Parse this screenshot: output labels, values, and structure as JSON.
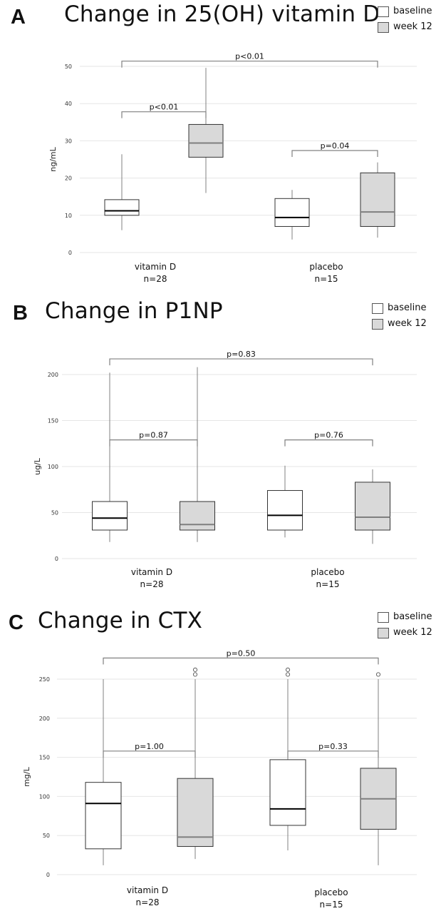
{
  "legend": {
    "baseline": "baseline",
    "week12": "week 12"
  },
  "colors": {
    "baseline_fill": "#ffffff",
    "week12_fill": "#d9d9d9",
    "box_stroke": "#333333",
    "whisker": "#808080",
    "grid": "#e6e6e6",
    "week12_median": "#7f7f7f"
  },
  "chart_data": [
    {
      "type": "box",
      "panel_label": "A",
      "title": "Change in 25(OH) vitamin D",
      "ylabel": "ng/mL",
      "ylim": [
        0,
        50
      ],
      "yticks": [
        0,
        10,
        20,
        30,
        40,
        50
      ],
      "groups": [
        {
          "label": "vitamin D",
          "n": "n=28"
        },
        {
          "label": "placebo",
          "n": "n=15"
        }
      ],
      "boxes": [
        {
          "group": "vitamin D",
          "series": "baseline",
          "min": 6,
          "q1": 10,
          "median": 11.2,
          "q3": 14.2,
          "max": 26.4,
          "outliers": []
        },
        {
          "group": "vitamin D",
          "series": "week 12",
          "min": 16,
          "q1": 25.6,
          "median": 29.4,
          "q3": 34.4,
          "max": 49.6,
          "outliers": []
        },
        {
          "group": "placebo",
          "series": "baseline",
          "min": 3.5,
          "q1": 7,
          "median": 9.4,
          "q3": 14.5,
          "max": 16.8,
          "outliers": []
        },
        {
          "group": "placebo",
          "series": "week 12",
          "min": 4,
          "q1": 7,
          "median": 10.9,
          "q3": 21.4,
          "max": 24.2,
          "outliers": []
        }
      ],
      "brackets": [
        {
          "from": 0,
          "to": 3,
          "label": "p<0.01",
          "y": 51.4
        },
        {
          "from": 0,
          "to": 1,
          "label": "p<0.01",
          "y": 37.8
        },
        {
          "from": 2,
          "to": 3,
          "label": "p=0.04",
          "y": 27.4
        }
      ]
    },
    {
      "type": "box",
      "panel_label": "B",
      "title": "Change in P1NP",
      "ylabel": "ug/L",
      "ylim": [
        0,
        200
      ],
      "yticks": [
        0,
        50,
        100,
        150,
        200
      ],
      "groups": [
        {
          "label": "vitamin D",
          "n": "n=28"
        },
        {
          "label": "placebo",
          "n": "n=15"
        }
      ],
      "boxes": [
        {
          "group": "vitamin D",
          "series": "baseline",
          "min": 18,
          "q1": 31,
          "median": 44,
          "q3": 62,
          "max": 202,
          "outliers": []
        },
        {
          "group": "vitamin D",
          "series": "week 12",
          "min": 18,
          "q1": 31,
          "median": 37,
          "q3": 62,
          "max": 208,
          "outliers": []
        },
        {
          "group": "placebo",
          "series": "baseline",
          "min": 23,
          "q1": 31,
          "median": 47,
          "q3": 74,
          "max": 101,
          "outliers": []
        },
        {
          "group": "placebo",
          "series": "week 12",
          "min": 16,
          "q1": 31,
          "median": 45,
          "q3": 83,
          "max": 97,
          "outliers": []
        }
      ],
      "brackets": [
        {
          "from": 0,
          "to": 3,
          "label": "p=0.83",
          "y": 217
        },
        {
          "from": 0,
          "to": 1,
          "label": "p=0.87",
          "y": 129
        },
        {
          "from": 2,
          "to": 3,
          "label": "p=0.76",
          "y": 129
        }
      ]
    },
    {
      "type": "box",
      "panel_label": "C",
      "title": "Change in CTX",
      "ylabel": "mg/L",
      "ylim": [
        0,
        250
      ],
      "yticks": [
        0,
        50,
        100,
        150,
        200,
        250
      ],
      "groups": [
        {
          "label": "vitamin D",
          "n": "n=28"
        },
        {
          "label": "placebo",
          "n": "n=15"
        }
      ],
      "boxes": [
        {
          "group": "vitamin D",
          "series": "baseline",
          "min": 12,
          "q1": 33,
          "median": 91,
          "q3": 118,
          "max": 250,
          "outliers": []
        },
        {
          "group": "vitamin D",
          "series": "week 12",
          "min": 20,
          "q1": 36,
          "median": 48,
          "q3": 123,
          "max": 250,
          "outliers": [
            256,
            262
          ]
        },
        {
          "group": "placebo",
          "series": "baseline",
          "min": 31,
          "q1": 63,
          "median": 84,
          "q3": 147,
          "max": 250,
          "outliers": [
            256,
            262
          ]
        },
        {
          "group": "placebo",
          "series": "week 12",
          "min": 12,
          "q1": 58,
          "median": 97,
          "q3": 136,
          "max": 250,
          "outliers": [
            256
          ]
        }
      ],
      "brackets": [
        {
          "from": 0,
          "to": 3,
          "label": "p=0.50",
          "y": 277
        },
        {
          "from": 0,
          "to": 1,
          "label": "p=1.00",
          "y": 158
        },
        {
          "from": 2,
          "to": 3,
          "label": "p=0.33",
          "y": 158
        }
      ]
    }
  ]
}
